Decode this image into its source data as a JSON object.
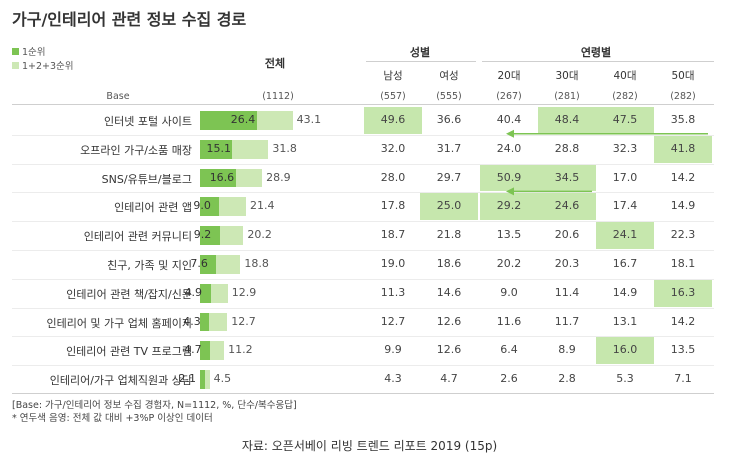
{
  "title": "가구/인테리어 관련 정보 수집 경로",
  "legend": {
    "items": [
      {
        "label": "1순위",
        "color": "#7dc453"
      },
      {
        "label": "1+2+3순위",
        "color": "#cde8b5"
      }
    ]
  },
  "header": {
    "total": "전체",
    "gender_group": "성별",
    "age_group": "연령별",
    "base_label": "Base"
  },
  "columns": [
    {
      "label": "남성",
      "base": "(557)"
    },
    {
      "label": "여성",
      "base": "(555)"
    },
    {
      "label": "20대",
      "base": "(267)"
    },
    {
      "label": "30대",
      "base": "(281)"
    },
    {
      "label": "40대",
      "base": "(282)"
    },
    {
      "label": "50대",
      "base": "(282)"
    }
  ],
  "total_base": "(1112)",
  "chart_data": {
    "type": "bar",
    "categories": [
      "인터넷 포털 사이트",
      "오프라인 가구/소품 매장",
      "SNS/유튜브/블로그",
      "인테리어 관련 앱",
      "인테리어 관련 커뮤니티",
      "친구, 가족 및 지인",
      "인테리어 관련 책/잡지/신문",
      "인테리어 및 가구 업체 홈페이지",
      "인테리어 관련 TV 프로그램",
      "인테리어/가구 업체직원과 상담"
    ],
    "series": [
      {
        "name": "1순위",
        "values": [
          26.4,
          15.1,
          16.6,
          9.0,
          9.2,
          7.6,
          4.9,
          4.3,
          4.7,
          2.1
        ]
      },
      {
        "name": "1+2+3순위",
        "values": [
          43.1,
          31.8,
          28.9,
          21.4,
          20.2,
          18.8,
          12.9,
          12.7,
          11.2,
          4.5
        ]
      }
    ],
    "table": [
      [
        "49.6",
        "36.6",
        "40.4",
        "48.4",
        "47.5",
        "35.8"
      ],
      [
        "32.0",
        "31.7",
        "24.0",
        "28.8",
        "32.3",
        "41.8"
      ],
      [
        "28.0",
        "29.7",
        "50.9",
        "34.5",
        "17.0",
        "14.2"
      ],
      [
        "17.8",
        "25.0",
        "29.2",
        "24.6",
        "17.4",
        "14.9"
      ],
      [
        "18.7",
        "21.8",
        "13.5",
        "20.6",
        "24.1",
        "22.3"
      ],
      [
        "19.0",
        "18.6",
        "20.2",
        "20.3",
        "16.7",
        "18.1"
      ],
      [
        "11.3",
        "14.6",
        "9.0",
        "11.4",
        "14.9",
        "16.3"
      ],
      [
        "12.7",
        "12.6",
        "11.6",
        "11.7",
        "13.1",
        "14.2"
      ],
      [
        "9.9",
        "12.6",
        "6.4",
        "8.9",
        "16.0",
        "13.5"
      ],
      [
        "4.3",
        "4.7",
        "2.6",
        "2.8",
        "5.3",
        "7.1"
      ]
    ],
    "highlighted": [
      [
        0,
        0
      ],
      [
        0,
        3
      ],
      [
        0,
        4
      ],
      [
        1,
        5
      ],
      [
        2,
        2
      ],
      [
        2,
        3
      ],
      [
        3,
        1
      ],
      [
        3,
        2
      ],
      [
        3,
        3
      ],
      [
        4,
        4
      ],
      [
        6,
        5
      ],
      [
        8,
        4
      ]
    ],
    "highlight_color": "#c6e7ad",
    "trend_arrows": [
      {
        "row_from": 1,
        "col_from": 5,
        "row_to": 1,
        "col_to": 2
      },
      {
        "row_from": 3,
        "col_from": 3,
        "row_to": 3,
        "col_to": 2
      }
    ]
  },
  "notes": [
    "[Base: 가구/인테리어 정보 수집 경험자, N=1112, %, 단수/복수응답]",
    "* 연두색 음영: 전체 값 대비 +3%P 이상인 데이터"
  ],
  "source": "자료: 오픈서베이 리빙 트렌드 리포트 2019 (15p)"
}
